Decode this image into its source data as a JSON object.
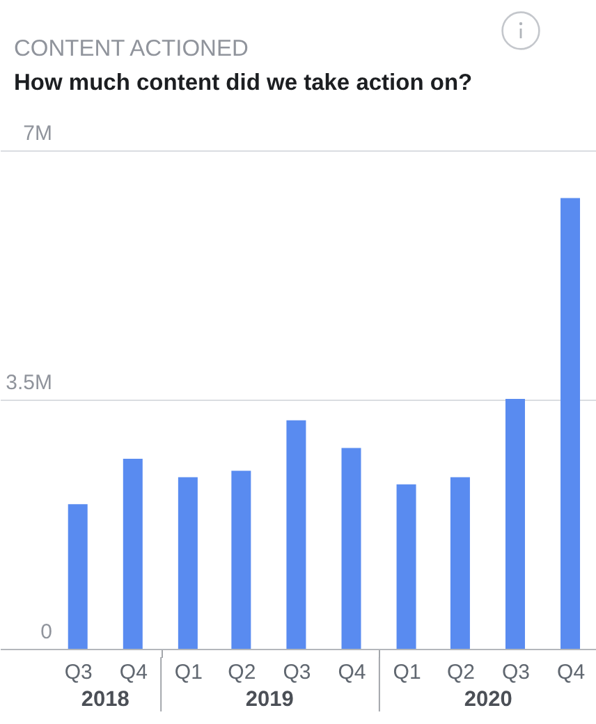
{
  "chart_data": {
    "type": "bar",
    "title": "CONTENT ACTIONED",
    "subtitle": "How much content did we take action on?",
    "x": [
      "2018-08-15",
      "2018-11-15",
      "2019-02-15",
      "2019-05-15",
      "2019-08-15",
      "2019-11-15",
      "2020-02-15",
      "2020-05-15",
      "2020-08-15",
      "2020-11-15"
    ],
    "values": [
      2030000,
      2670000,
      2410000,
      2500000,
      3210000,
      2820000,
      2310000,
      2410000,
      3510000,
      6330000
    ],
    "color": "#598bf0",
    "xlim": [
      "2018-04-07",
      "2020-12-28"
    ],
    "xticks": [
      {
        "value": "2018-08-15",
        "label": "Q3"
      },
      {
        "value": "2018-11-15",
        "label": "Q4"
      },
      {
        "value": "2019-01-01",
        "label": null
      },
      {
        "value": "2019-02-15",
        "label": "Q1"
      },
      {
        "value": "2019-05-15",
        "label": "Q2"
      },
      {
        "value": "2019-08-15",
        "label": "Q3"
      },
      {
        "value": "2019-11-15",
        "label": "Q4"
      },
      {
        "value": "2020-01-01",
        "label": null
      },
      {
        "value": "2020-02-15",
        "label": "Q1"
      },
      {
        "value": "2020-05-15",
        "label": "Q2"
      },
      {
        "value": "2020-08-15",
        "label": "Q3"
      },
      {
        "value": "2020-11-15",
        "label": "Q4"
      }
    ],
    "ylim": [
      0,
      7000000
    ],
    "yticks": [
      0,
      {
        "value": 3500000,
        "label": "3.5M"
      },
      {
        "value": 7000000,
        "label": "7M"
      }
    ],
    "grid": "y",
    "annotations": [
      "2018",
      "2019",
      "2020"
    ]
  }
}
